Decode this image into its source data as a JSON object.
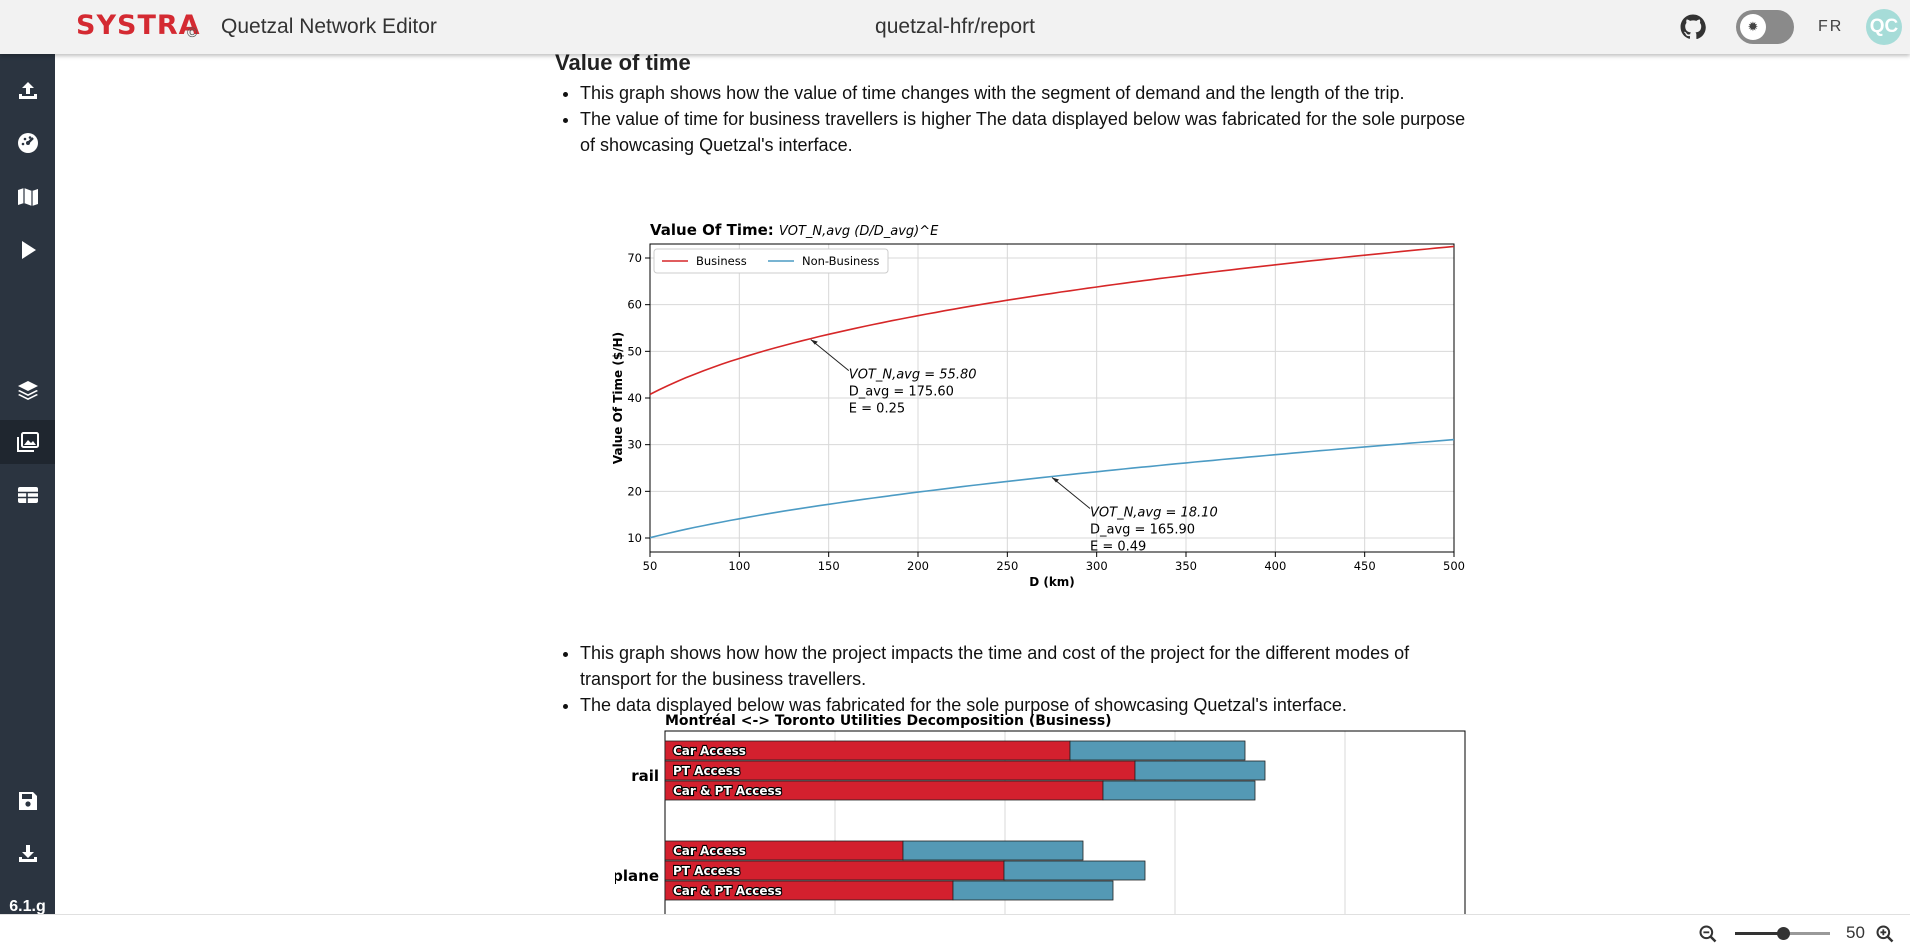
{
  "app": {
    "logo": "SYSTRA",
    "logo_mark": "©",
    "title": "Quetzal Network Editor",
    "project": "quetzal-hfr/report",
    "lang": "FR",
    "avatar": "QC",
    "version": "6.1.g"
  },
  "sidebar": {
    "items": [
      {
        "icon": "menu-icon"
      },
      {
        "icon": "upload-icon"
      },
      {
        "icon": "dashboard-icon"
      },
      {
        "icon": "map-icon"
      },
      {
        "icon": "play-icon"
      },
      {
        "icon": "layers-icon"
      },
      {
        "icon": "image-gallery-icon",
        "active": true
      },
      {
        "icon": "table-icon"
      },
      {
        "icon": "save-icon"
      },
      {
        "icon": "download-icon"
      }
    ]
  },
  "report": {
    "heading": "Value of time",
    "bullets_top": [
      "This graph shows how the value of time changes with the segment of demand and the length of the trip.",
      "The value of time for business travellers is higher The data displayed below was fabricated for the sole purpose of showcasing Quetzal's interface."
    ],
    "bullets_bottom": [
      "This graph shows how how the project impacts the time and cost of the project for the different modes of transport for the business travellers.",
      "The data displayed below was fabricated for the sole purpose of showcasing Quetzal's interface."
    ]
  },
  "chart_data": [
    {
      "type": "line",
      "title_bold": "Value Of Time:",
      "title_formula": "VOT_N,avg (D/D_avg)^E",
      "xlabel": "D (km)",
      "ylabel": "Value Of Time ($/H)",
      "xlim": [
        50,
        500
      ],
      "ylim": [
        7,
        73
      ],
      "xticks": [
        50,
        100,
        150,
        200,
        250,
        300,
        350,
        400,
        450,
        500
      ],
      "yticks": [
        10,
        20,
        30,
        40,
        50,
        60,
        70
      ],
      "grid": true,
      "legend": "top-left",
      "series": [
        {
          "name": "Business",
          "color": "#d62728",
          "vot": 55.8,
          "davg": 175.6,
          "e": 0.25,
          "x": [
            50,
            100,
            150,
            200,
            250,
            300,
            350,
            400,
            450,
            500
          ],
          "y": [
            40.6,
            48.3,
            53.5,
            57.5,
            60.8,
            63.6,
            66.1,
            68.4,
            70.4,
            72.3
          ],
          "annotation": {
            "x": 140,
            "lines": [
              "VOT_N,avg = 55.80",
              "D_avg = 175.60",
              "E = 0.25"
            ]
          }
        },
        {
          "name": "Non-Business",
          "color": "#4c9bc4",
          "vot": 18.1,
          "davg": 165.9,
          "e": 0.49,
          "x": [
            50,
            100,
            150,
            200,
            250,
            300,
            350,
            400,
            450,
            500
          ],
          "y": [
            10.1,
            14.2,
            17.3,
            19.8,
            22.1,
            24.2,
            26.1,
            27.9,
            29.6,
            31.2
          ],
          "annotation": {
            "x": 275,
            "lines": [
              "VOT_N,avg = 18.10",
              "D_avg = 165.90",
              "E = 0.49"
            ]
          }
        }
      ]
    },
    {
      "type": "bar",
      "orientation": "horizontal-stacked",
      "title": "Montréal <-> Toronto Utilities Decomposition (Business)",
      "groups": [
        "rail",
        "plane"
      ],
      "categories": [
        "Car Access",
        "PT Access",
        "Car & PT Access"
      ],
      "series": [
        {
          "color": "#d3202e",
          "values": {
            "rail": [
              405,
              470,
              438
            ],
            "plane": [
              238,
              339,
              288
            ]
          }
        },
        {
          "color": "#5499b5",
          "values": {
            "rail": [
              175,
              130,
              152
            ],
            "plane": [
              180,
              141,
              160
            ]
          }
        }
      ]
    }
  ],
  "zoom": {
    "value": 50,
    "fraction": 0.5
  }
}
